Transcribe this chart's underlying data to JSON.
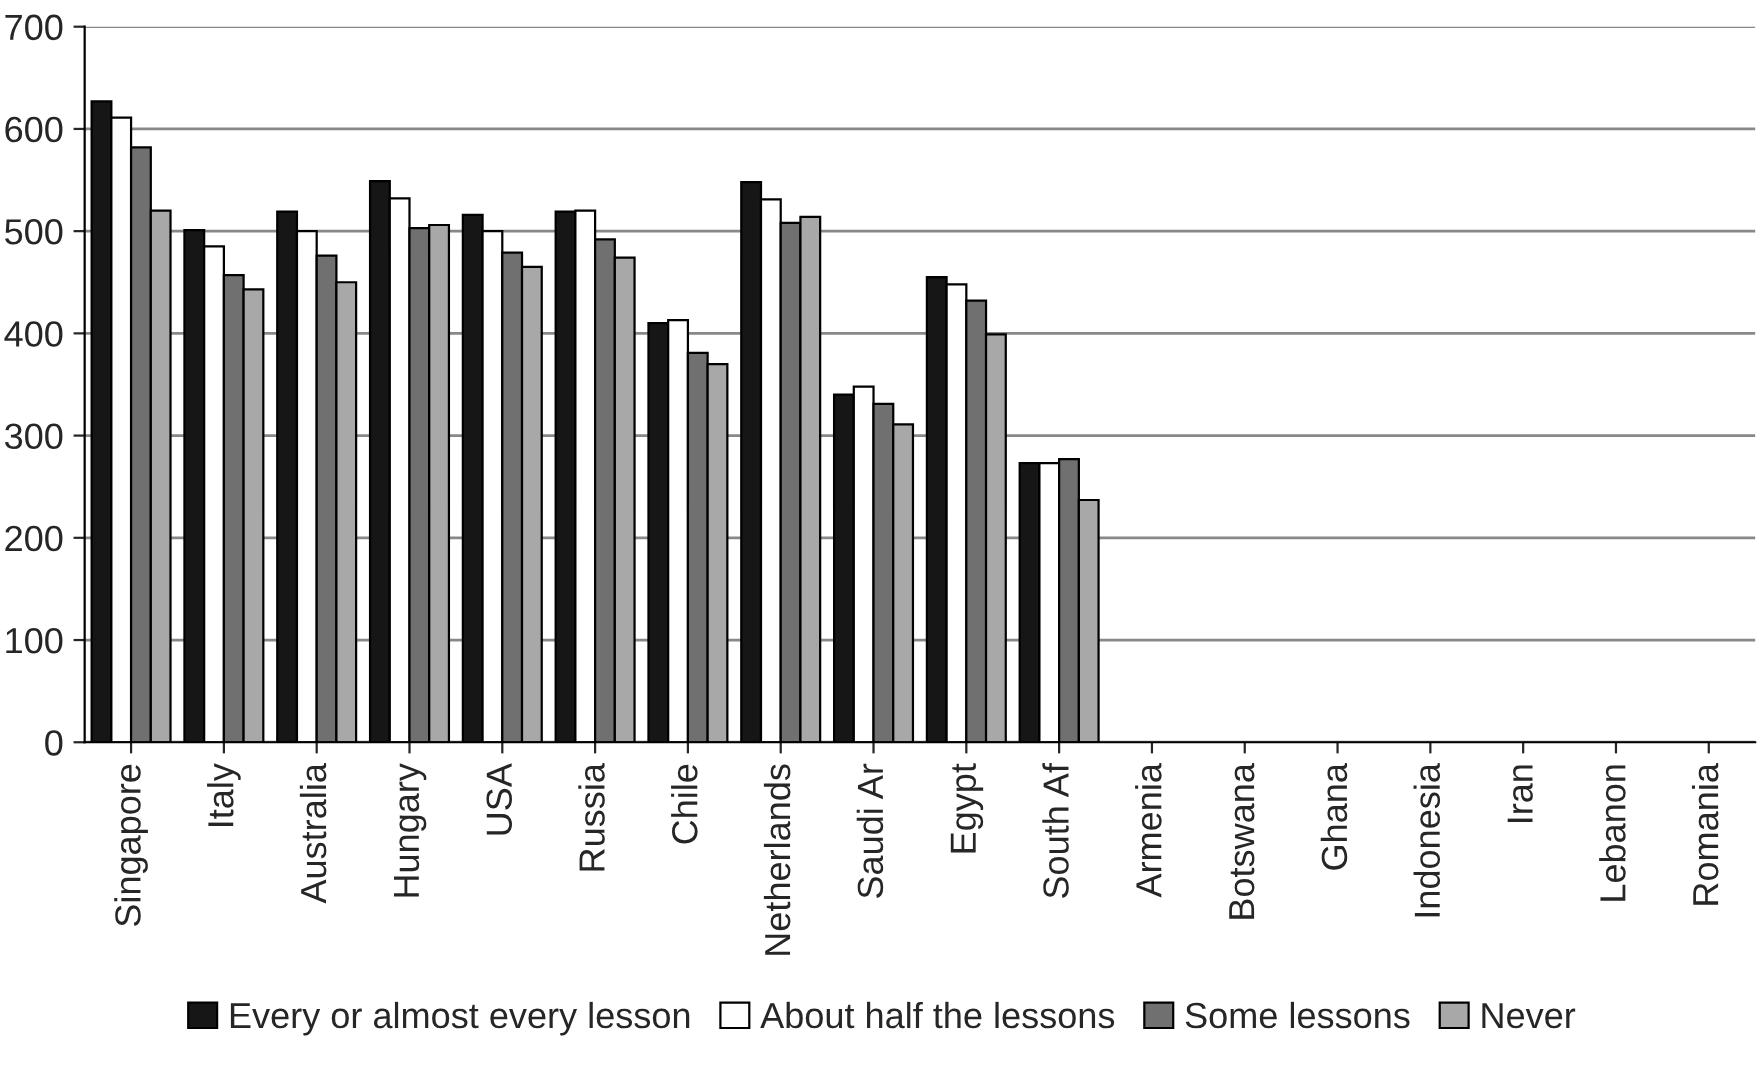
{
  "chart_data": {
    "type": "bar",
    "categories": [
      "Singapore",
      "Italy",
      "Australia",
      "Hungary",
      "USA",
      "Russia",
      "Chile",
      "Netherlands",
      "Saudi Ar",
      "Egypt",
      "South Af",
      "Armenia",
      "Botswana",
      "Ghana",
      "Indonesia",
      "Iran",
      "Lebanon",
      "Romania"
    ],
    "series": [
      {
        "name": "Every or almost every lesson",
        "color": "#161616",
        "values": [
          627,
          501,
          519,
          549,
          516,
          519,
          410,
          548,
          340,
          455,
          273,
          null,
          null,
          null,
          null,
          null,
          null,
          null
        ]
      },
      {
        "name": "About half the lessons",
        "color": "#ffffff",
        "values": [
          611,
          485,
          500,
          532,
          500,
          520,
          413,
          531,
          348,
          448,
          273,
          null,
          null,
          null,
          null,
          null,
          null,
          null
        ]
      },
      {
        "name": "Some lessons",
        "color": "#707070",
        "values": [
          582,
          457,
          476,
          503,
          479,
          492,
          381,
          508,
          331,
          432,
          277,
          null,
          null,
          null,
          null,
          null,
          null,
          null
        ]
      },
      {
        "name": "Never",
        "color": "#a8a8a8",
        "values": [
          520,
          443,
          450,
          506,
          465,
          474,
          370,
          514,
          311,
          399,
          237,
          null,
          null,
          null,
          null,
          null,
          null,
          null
        ]
      }
    ],
    "ylim": [
      0,
      700
    ],
    "yticks": [
      0,
      100,
      200,
      300,
      400,
      500,
      600,
      700
    ],
    "grid": "y",
    "legend": "bottom"
  }
}
